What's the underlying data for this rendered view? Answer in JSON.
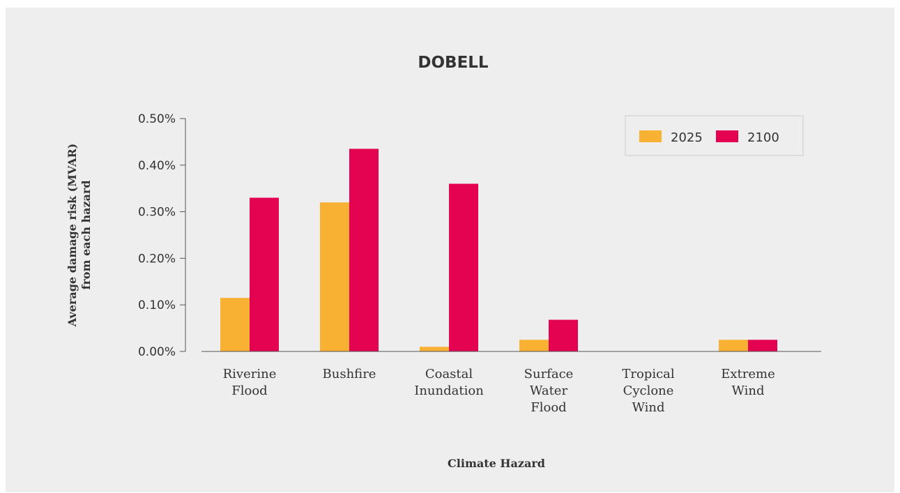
{
  "chart_data": {
    "type": "bar",
    "title": "DOBELL",
    "xlabel": "Climate Hazard",
    "ylabel": [
      "Average damage risk (MVAR)",
      "from each hazard"
    ],
    "categories": [
      [
        "Riverine",
        "Flood"
      ],
      [
        "Bushfire"
      ],
      [
        "Coastal",
        "Inundation"
      ],
      [
        "Surface",
        "Water",
        "Flood"
      ],
      [
        "Tropical",
        "Cyclone",
        "Wind"
      ],
      [
        "Extreme",
        "Wind"
      ]
    ],
    "series": [
      {
        "name": "2025",
        "color": "#f8b133",
        "values": [
          0.115,
          0.32,
          0.01,
          0.025,
          0.0,
          0.025
        ]
      },
      {
        "name": "2100",
        "color": "#e30351",
        "values": [
          0.33,
          0.435,
          0.36,
          0.068,
          0.0,
          0.025
        ]
      }
    ],
    "ylim": [
      0,
      0.5
    ],
    "yticks": [
      0,
      0.1,
      0.2,
      0.3,
      0.4,
      0.5
    ],
    "ytick_labels": [
      "0.00%",
      "0.10%",
      "0.20%",
      "0.30%",
      "0.40%",
      "0.50%"
    ],
    "grid": false,
    "legend_position": "top-right"
  }
}
